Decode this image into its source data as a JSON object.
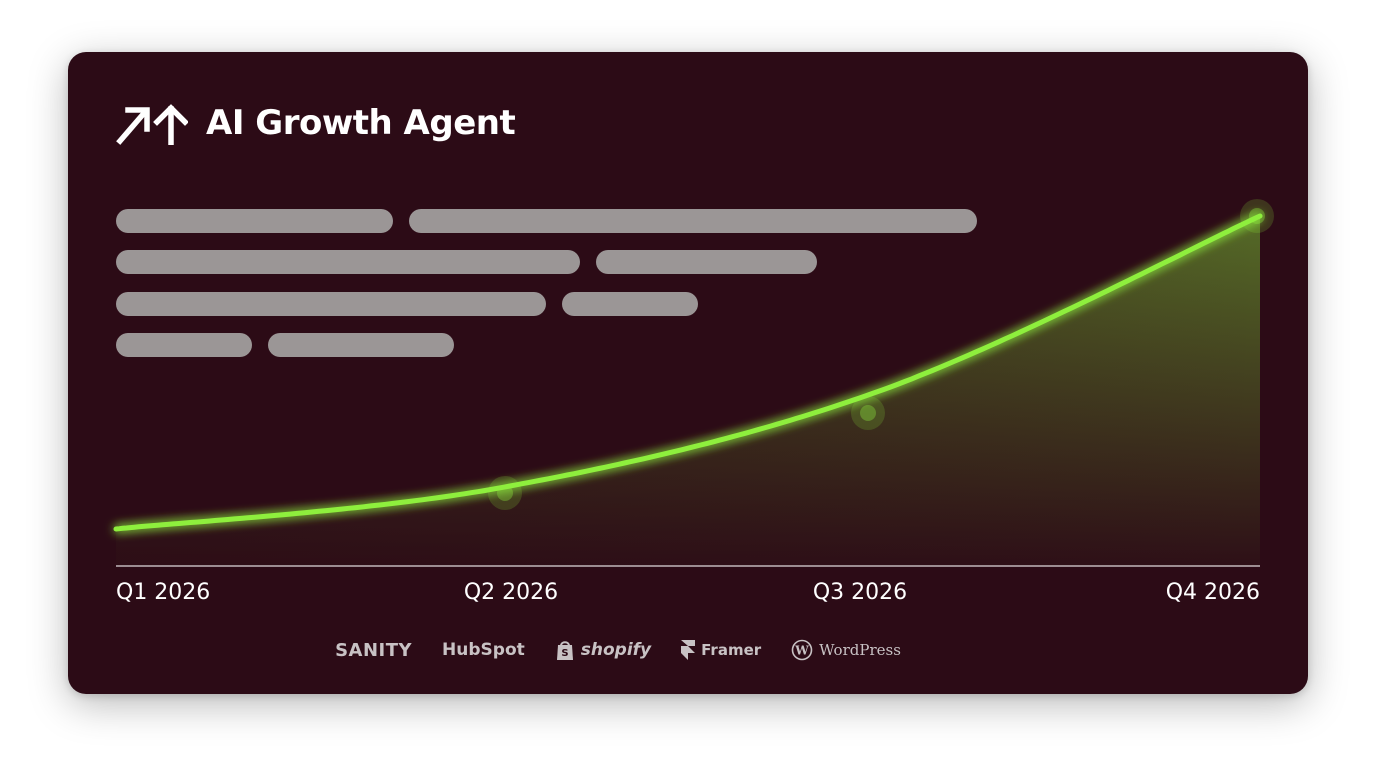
{
  "header": {
    "title": "AI Growth Agent",
    "icon": "arrows-up-icon"
  },
  "chart_data": {
    "type": "line",
    "categories": [
      "Q1 2026",
      "Q2 2026",
      "Q3 2026",
      "Q4 2026"
    ],
    "series": [
      {
        "values": [
          0.0,
          0.13,
          0.44,
          1.0
        ],
        "color": "#8eef3e"
      }
    ],
    "xlabel": "",
    "ylabel": "",
    "ylim": [
      0,
      1
    ],
    "grid": false,
    "highlighted_points": [
      "Q2 2026",
      "Q3 2026",
      "Q4 2026"
    ]
  },
  "logos": [
    {
      "name": "SANITY",
      "icon": "sanity-logo"
    },
    {
      "name": "HubSpot",
      "icon": "hubspot-logo"
    },
    {
      "name": "shopify",
      "icon": "shopify-bag-icon"
    },
    {
      "name": "Framer",
      "icon": "framer-icon"
    },
    {
      "name": "WordPress",
      "icon": "wordpress-icon"
    }
  ],
  "colors": {
    "card_background": "#2c0b16",
    "accent": "#8eef3e",
    "placeholder": "#9b9696"
  }
}
